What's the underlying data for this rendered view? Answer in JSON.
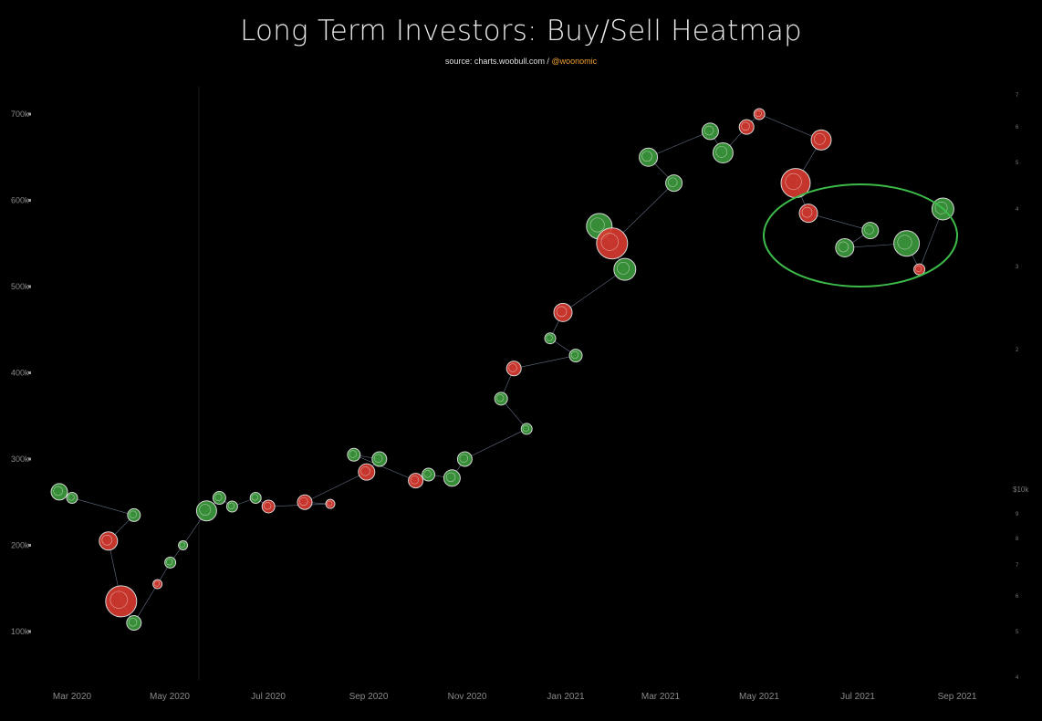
{
  "chart_data": {
    "type": "scatter",
    "title": "Long Term Investors: Buy/Sell Heatmap",
    "subtitle_source": "source: charts.woobull.com / ",
    "subtitle_handle": "@woonomic",
    "left_axis": {
      "ticks": [
        "100k",
        "200k",
        "300k",
        "400k",
        "500k",
        "600k",
        "700k"
      ],
      "values": [
        100000,
        200000,
        300000,
        400000,
        500000,
        600000,
        700000
      ],
      "ylim": [
        50000,
        740000
      ]
    },
    "right_axis": {
      "label": "$10k",
      "ticks": [
        "4",
        "5",
        "6",
        "7",
        "8",
        "9",
        "$10k",
        "2",
        "3",
        "4",
        "5",
        "6",
        "7"
      ]
    },
    "x_axis": {
      "ticks": [
        "Mar 2020",
        "May 2020",
        "Jul 2020",
        "Sep 2020",
        "Nov 2020",
        "Jan 2021",
        "Mar 2021",
        "May 2021",
        "Jul 2021",
        "Sep 2021"
      ]
    },
    "grid": false,
    "colors": {
      "buy": "#3c9a3c",
      "sell": "#d63a30",
      "line": "#8da0c0",
      "highlight": "#3dbb4a"
    },
    "highlight": {
      "shape": "ellipse",
      "around": "Jun 2021 - Aug 2021"
    },
    "series_x": [
      "Feb 2020",
      "Feb 2020",
      "Mar 2020",
      "Mar 2020",
      "Mar 2020",
      "Mar 2020",
      "Apr 2020",
      "Apr 2020",
      "Apr 2020",
      "May 2020",
      "May 2020",
      "May 2020",
      "Jun 2020",
      "Jun 2020",
      "Jul 2020",
      "Jul 2020",
      "Aug 2020",
      "Aug 2020",
      "Aug 2020",
      "Sep 2020",
      "Sep 2020",
      "Oct 2020",
      "Oct 2020",
      "Nov 2020",
      "Nov 2020",
      "Nov 2020",
      "Dec 2020",
      "Dec 2020",
      "Dec 2020",
      "Jan 2021",
      "Jan 2021",
      "Jan 2021",
      "Feb 2021",
      "Feb 2021",
      "Mar 2021",
      "Mar 2021",
      "Apr 2021",
      "Apr 2021",
      "May 2021",
      "May 2021",
      "May 2021",
      "Jun 2021",
      "Jun 2021",
      "Jul 2021",
      "Jul 2021",
      "Aug 2021"
    ],
    "series_y": [
      262000,
      255000,
      235000,
      205000,
      135000,
      110000,
      155000,
      180000,
      200000,
      240000,
      255000,
      245000,
      255000,
      245000,
      248000,
      250000,
      285000,
      300000,
      305000,
      275000,
      282000,
      278000,
      300000,
      335000,
      370000,
      405000,
      420000,
      440000,
      470000,
      520000,
      570000,
      550000,
      620000,
      650000,
      680000,
      655000,
      685000,
      700000,
      670000,
      620000,
      585000,
      565000,
      545000,
      550000,
      520000,
      590000
    ],
    "series_size": [
      9,
      6,
      7,
      10,
      17,
      8,
      5,
      6,
      5,
      11,
      7,
      6,
      6,
      7,
      5,
      8,
      9,
      8,
      7,
      8,
      7,
      9,
      8,
      6,
      7,
      8,
      7,
      6,
      10,
      12,
      14,
      17,
      9,
      10,
      9,
      11,
      8,
      6,
      11,
      16,
      10,
      9,
      10,
      14,
      6,
      12
    ],
    "series_type": [
      "buy",
      "buy",
      "buy",
      "sell",
      "sell",
      "buy",
      "sell",
      "buy",
      "buy",
      "buy",
      "buy",
      "buy",
      "buy",
      "sell",
      "sell",
      "sell",
      "sell",
      "buy",
      "buy",
      "sell",
      "buy",
      "buy",
      "buy",
      "buy",
      "buy",
      "sell",
      "buy",
      "buy",
      "sell",
      "buy",
      "buy",
      "sell",
      "buy",
      "buy",
      "buy",
      "buy",
      "sell",
      "sell",
      "sell",
      "sell",
      "sell",
      "buy",
      "buy",
      "buy",
      "sell",
      "buy"
    ]
  }
}
